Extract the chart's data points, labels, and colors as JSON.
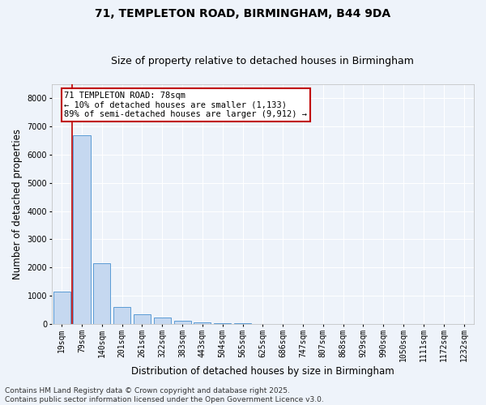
{
  "title1": "71, TEMPLETON ROAD, BIRMINGHAM, B44 9DA",
  "title2": "Size of property relative to detached houses in Birmingham",
  "xlabel": "Distribution of detached houses by size in Birmingham",
  "ylabel": "Number of detached properties",
  "footnote": "Contains HM Land Registry data © Crown copyright and database right 2025.\nContains public sector information licensed under the Open Government Licence v3.0.",
  "categories": [
    "19sqm",
    "79sqm",
    "140sqm",
    "201sqm",
    "261sqm",
    "322sqm",
    "383sqm",
    "443sqm",
    "504sqm",
    "565sqm",
    "625sqm",
    "686sqm",
    "747sqm",
    "807sqm",
    "868sqm",
    "929sqm",
    "990sqm",
    "1050sqm",
    "1111sqm",
    "1172sqm",
    "1232sqm"
  ],
  "values": [
    1133,
    6700,
    2150,
    600,
    350,
    220,
    100,
    45,
    20,
    12,
    7,
    4,
    3,
    2,
    2,
    1,
    1,
    1,
    1,
    1,
    1
  ],
  "bar_color": "#c5d8f0",
  "bar_edge_color": "#5b9bd5",
  "annotation_text": "71 TEMPLETON ROAD: 78sqm\n← 10% of detached houses are smaller (1,133)\n89% of semi-detached houses are larger (9,912) →",
  "annotation_fontsize": 7.5,
  "ylim": [
    0,
    8500
  ],
  "yticks": [
    0,
    1000,
    2000,
    3000,
    4000,
    5000,
    6000,
    7000,
    8000
  ],
  "bg_color": "#eef3fa",
  "plot_bg_color": "#eef3fa",
  "grid_color": "#ffffff",
  "title_fontsize": 10,
  "subtitle_fontsize": 9,
  "tick_fontsize": 7,
  "label_fontsize": 8.5,
  "footnote_fontsize": 6.5,
  "red_line_x": 0.5,
  "annotation_edge_color": "#c00000"
}
